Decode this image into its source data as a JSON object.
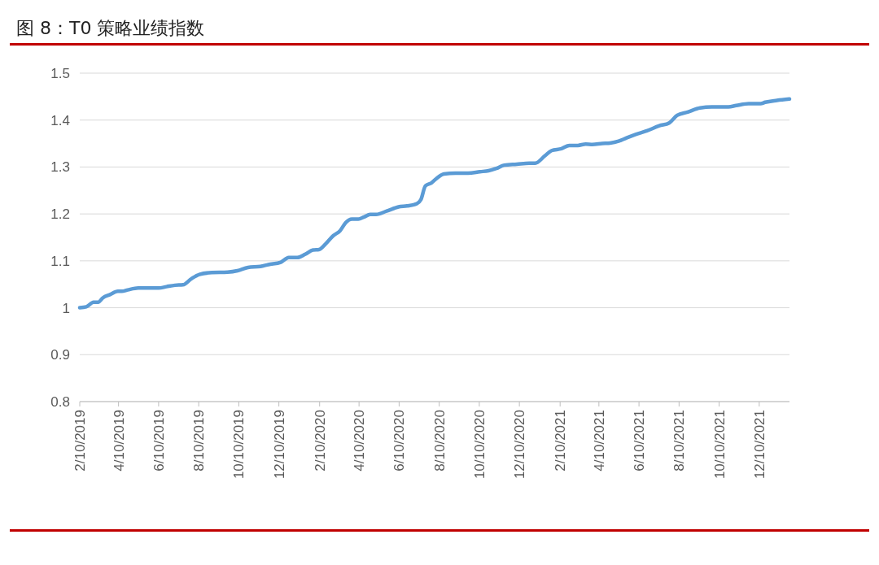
{
  "chart_data": {
    "type": "line",
    "title": "图 8：T0 策略业绩指数",
    "series": [
      {
        "color": "#5b9bd5",
        "x": [
          "2019-02-10",
          "2019-02-20",
          "2019-03-03",
          "2019-03-10",
          "2019-03-17",
          "2019-03-28",
          "2019-04-09",
          "2019-04-15",
          "2019-04-24",
          "2019-05-10",
          "2019-05-29",
          "2019-06-10",
          "2019-06-22",
          "2019-07-05",
          "2019-07-17",
          "2019-07-30",
          "2019-08-11",
          "2019-08-30",
          "2019-09-23",
          "2019-10-08",
          "2019-10-24",
          "2019-11-12",
          "2019-11-24",
          "2019-12-13",
          "2019-12-25",
          "2020-01-07",
          "2020-01-19",
          "2020-01-31",
          "2020-02-09",
          "2020-02-19",
          "2020-03-02",
          "2020-03-12",
          "2020-03-21",
          "2020-03-30",
          "2020-04-09",
          "2020-04-17",
          "2020-04-27",
          "2020-05-06",
          "2020-05-22",
          "2020-06-09",
          "2020-06-22",
          "2020-07-07",
          "2020-07-13",
          "2020-07-20",
          "2020-07-29",
          "2020-08-08",
          "2020-08-17",
          "2020-09-04",
          "2020-09-23",
          "2020-10-11",
          "2020-10-24",
          "2020-11-05",
          "2020-11-17",
          "2020-12-06",
          "2020-12-25",
          "2021-01-03",
          "2021-01-18",
          "2021-01-28",
          "2021-02-12",
          "2021-02-24",
          "2021-03-09",
          "2021-03-21",
          "2021-03-31",
          "2021-04-15",
          "2021-04-27",
          "2021-05-10",
          "2021-05-22",
          "2021-06-04",
          "2021-06-22",
          "2021-07-11",
          "2021-07-26",
          "2021-08-07",
          "2021-08-23",
          "2021-09-11",
          "2021-09-29",
          "2021-10-24",
          "2021-11-05",
          "2021-11-24",
          "2021-12-12",
          "2021-12-19",
          "2022-01-06",
          "2022-01-25"
        ],
        "values": [
          1.0,
          1.002,
          1.012,
          1.012,
          1.021,
          1.028,
          1.035,
          1.035,
          1.038,
          1.042,
          1.042,
          1.042,
          1.045,
          1.048,
          1.049,
          1.062,
          1.071,
          1.075,
          1.076,
          1.079,
          1.086,
          1.088,
          1.092,
          1.097,
          1.107,
          1.107,
          1.114,
          1.123,
          1.124,
          1.136,
          1.154,
          1.164,
          1.182,
          1.189,
          1.189,
          1.193,
          1.199,
          1.199,
          1.206,
          1.215,
          1.217,
          1.222,
          1.23,
          1.26,
          1.266,
          1.278,
          1.285,
          1.287,
          1.287,
          1.29,
          1.292,
          1.297,
          1.304,
          1.306,
          1.308,
          1.308,
          1.324,
          1.335,
          1.339,
          1.346,
          1.346,
          1.349,
          1.348,
          1.35,
          1.351,
          1.355,
          1.362,
          1.369,
          1.377,
          1.388,
          1.394,
          1.41,
          1.417,
          1.426,
          1.428,
          1.428,
          1.431,
          1.435,
          1.435,
          1.438,
          1.442,
          1.445
        ]
      }
    ],
    "xlim": [
      "2019-02-10",
      "2022-01-25"
    ],
    "xticks": [
      {
        "value": "2019-02-10",
        "label": "2/10/2019"
      },
      {
        "value": "2019-04-10",
        "label": "4/10/2019"
      },
      {
        "value": "2019-06-10",
        "label": "6/10/2019"
      },
      {
        "value": "2019-08-10",
        "label": "8/10/2019"
      },
      {
        "value": "2019-10-10",
        "label": "10/10/2019"
      },
      {
        "value": "2019-12-10",
        "label": "12/10/2019"
      },
      {
        "value": "2020-02-10",
        "label": "2/10/2020"
      },
      {
        "value": "2020-04-10",
        "label": "4/10/2020"
      },
      {
        "value": "2020-06-10",
        "label": "6/10/2020"
      },
      {
        "value": "2020-08-10",
        "label": "8/10/2020"
      },
      {
        "value": "2020-10-10",
        "label": "10/10/2020"
      },
      {
        "value": "2020-12-10",
        "label": "12/10/2020"
      },
      {
        "value": "2021-02-10",
        "label": "2/10/2021"
      },
      {
        "value": "2021-04-10",
        "label": "4/10/2021"
      },
      {
        "value": "2021-06-10",
        "label": "6/10/2021"
      },
      {
        "value": "2021-08-10",
        "label": "8/10/2021"
      },
      {
        "value": "2021-10-10",
        "label": "10/10/2021"
      },
      {
        "value": "2021-12-10",
        "label": "12/10/2021"
      }
    ],
    "ylim": [
      0.8,
      1.5
    ],
    "yticks": [
      0.8,
      0.9,
      1,
      1.1,
      1.2,
      1.3,
      1.4,
      1.5
    ],
    "grid": "y",
    "marker": "none",
    "line_style": "solid"
  }
}
